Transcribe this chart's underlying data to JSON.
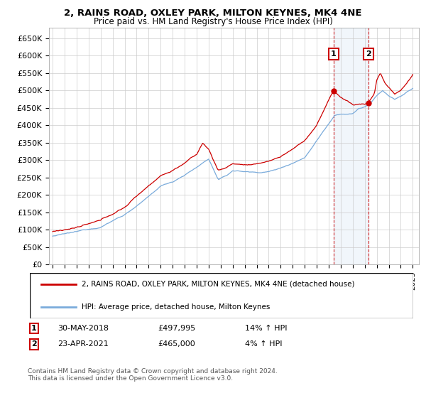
{
  "title": "2, RAINS ROAD, OXLEY PARK, MILTON KEYNES, MK4 4NE",
  "subtitle": "Price paid vs. HM Land Registry's House Price Index (HPI)",
  "ylabel_ticks": [
    "£0",
    "£50K",
    "£100K",
    "£150K",
    "£200K",
    "£250K",
    "£300K",
    "£350K",
    "£400K",
    "£450K",
    "£500K",
    "£550K",
    "£600K",
    "£650K"
  ],
  "ytick_values": [
    0,
    50000,
    100000,
    150000,
    200000,
    250000,
    300000,
    350000,
    400000,
    450000,
    500000,
    550000,
    600000,
    650000
  ],
  "ylim": [
    0,
    680000
  ],
  "xlim_start": 1994.7,
  "xlim_end": 2025.5,
  "sale1_date": 2018.41,
  "sale1_price": 497995,
  "sale1_label": "1",
  "sale2_date": 2021.31,
  "sale2_price": 465000,
  "sale2_label": "2",
  "property_color": "#cc0000",
  "hpi_color": "#7aabdb",
  "sale_box_color": "#cc0000",
  "background_color": "#ffffff",
  "grid_color": "#cccccc",
  "legend_property": "2, RAINS ROAD, OXLEY PARK, MILTON KEYNES, MK4 4NE (detached house)",
  "legend_hpi": "HPI: Average price, detached house, Milton Keynes",
  "annotation1_date": "30-MAY-2018",
  "annotation1_price": "£497,995",
  "annotation1_hpi": "14% ↑ HPI",
  "annotation2_date": "23-APR-2021",
  "annotation2_price": "£465,000",
  "annotation2_hpi": "4% ↑ HPI",
  "footnote": "Contains HM Land Registry data © Crown copyright and database right 2024.\nThis data is licensed under the Open Government Licence v3.0."
}
